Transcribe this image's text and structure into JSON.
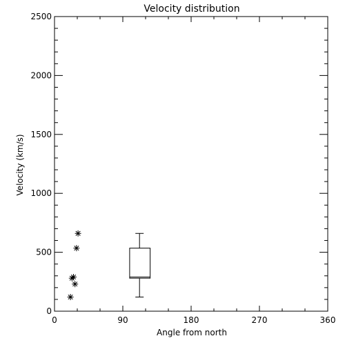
{
  "chart_data": {
    "type": "scatter",
    "title": "Velocity distribution",
    "xlabel": "Angle from north",
    "ylabel": "Velocity (km/s)",
    "xlim": [
      0,
      360
    ],
    "ylim": [
      0,
      2500
    ],
    "xticks": [
      0,
      90,
      180,
      270,
      360
    ],
    "xtick_labels": [
      "0",
      "90",
      "180",
      "270",
      "360"
    ],
    "yticks": [
      0,
      500,
      1000,
      1500,
      2000,
      2500
    ],
    "ytick_labels": [
      "0",
      "500",
      "1000",
      "1500",
      "2000",
      "2500"
    ],
    "grid": false,
    "points": [
      {
        "x": 21,
        "y": 120
      },
      {
        "x": 23,
        "y": 280
      },
      {
        "x": 25,
        "y": 290
      },
      {
        "x": 27,
        "y": 230
      },
      {
        "x": 29,
        "y": 535
      },
      {
        "x": 31,
        "y": 660
      }
    ],
    "box": {
      "x": 112,
      "x_min": 99,
      "x_max": 126,
      "whisker_low": 120,
      "q1": 280,
      "median": 290,
      "q3": 535,
      "whisker_high": 660
    }
  }
}
